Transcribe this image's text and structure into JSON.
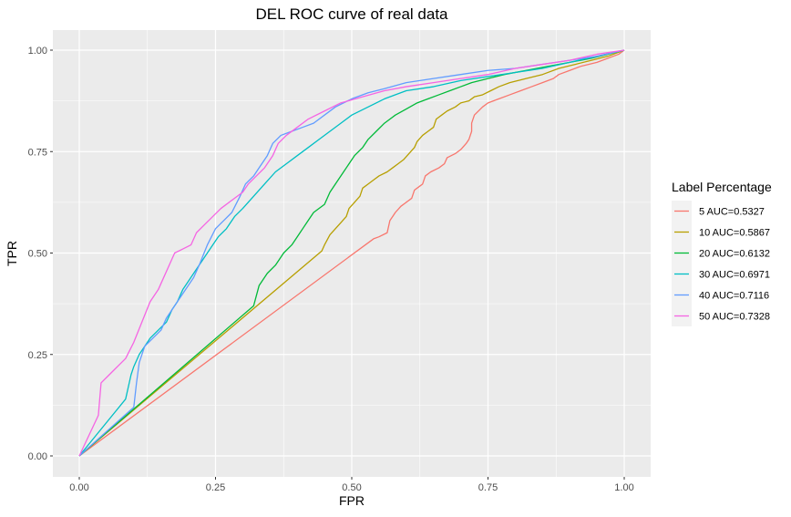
{
  "chart_data": {
    "type": "line",
    "title": "DEL ROC curve of real data",
    "xlabel": "FPR",
    "ylabel": "TPR",
    "xlim": [
      0,
      1
    ],
    "ylim": [
      0,
      1
    ],
    "x_ticks": [
      "0.00",
      "0.25",
      "0.50",
      "0.75",
      "1.00"
    ],
    "y_ticks": [
      "0.00",
      "0.25",
      "0.50",
      "0.75",
      "1.00"
    ],
    "grid": true,
    "legend_position": "right",
    "legend_title": "Label Percentage",
    "series": [
      {
        "name": "5 AUC=0.5327",
        "color": "#F8766D",
        "points": [
          [
            0,
            0
          ],
          [
            0.54,
            0.535
          ],
          [
            0.55,
            0.54
          ],
          [
            0.565,
            0.55
          ],
          [
            0.57,
            0.58
          ],
          [
            0.575,
            0.59
          ],
          [
            0.58,
            0.6
          ],
          [
            0.59,
            0.615
          ],
          [
            0.6,
            0.625
          ],
          [
            0.61,
            0.635
          ],
          [
            0.615,
            0.655
          ],
          [
            0.625,
            0.665
          ],
          [
            0.63,
            0.67
          ],
          [
            0.635,
            0.69
          ],
          [
            0.645,
            0.7
          ],
          [
            0.66,
            0.71
          ],
          [
            0.67,
            0.72
          ],
          [
            0.675,
            0.735
          ],
          [
            0.69,
            0.745
          ],
          [
            0.7,
            0.755
          ],
          [
            0.71,
            0.77
          ],
          [
            0.715,
            0.78
          ],
          [
            0.72,
            0.8
          ],
          [
            0.72,
            0.82
          ],
          [
            0.725,
            0.84
          ],
          [
            0.74,
            0.86
          ],
          [
            0.75,
            0.87
          ],
          [
            0.77,
            0.88
          ],
          [
            0.79,
            0.89
          ],
          [
            0.81,
            0.9
          ],
          [
            0.83,
            0.91
          ],
          [
            0.85,
            0.92
          ],
          [
            0.87,
            0.93
          ],
          [
            0.88,
            0.94
          ],
          [
            0.9,
            0.95
          ],
          [
            0.92,
            0.96
          ],
          [
            0.95,
            0.97
          ],
          [
            0.97,
            0.98
          ],
          [
            0.99,
            0.99
          ],
          [
            1,
            1
          ]
        ]
      },
      {
        "name": "10 AUC=0.5867",
        "color": "#B79F00",
        "points": [
          [
            0,
            0
          ],
          [
            0.445,
            0.505
          ],
          [
            0.45,
            0.52
          ],
          [
            0.46,
            0.545
          ],
          [
            0.47,
            0.56
          ],
          [
            0.48,
            0.575
          ],
          [
            0.49,
            0.59
          ],
          [
            0.495,
            0.61
          ],
          [
            0.505,
            0.625
          ],
          [
            0.515,
            0.64
          ],
          [
            0.52,
            0.66
          ],
          [
            0.53,
            0.67
          ],
          [
            0.54,
            0.68
          ],
          [
            0.55,
            0.69
          ],
          [
            0.565,
            0.7
          ],
          [
            0.575,
            0.71
          ],
          [
            0.585,
            0.72
          ],
          [
            0.595,
            0.73
          ],
          [
            0.605,
            0.745
          ],
          [
            0.615,
            0.76
          ],
          [
            0.62,
            0.775
          ],
          [
            0.63,
            0.79
          ],
          [
            0.64,
            0.8
          ],
          [
            0.65,
            0.81
          ],
          [
            0.655,
            0.83
          ],
          [
            0.665,
            0.84
          ],
          [
            0.675,
            0.85
          ],
          [
            0.69,
            0.86
          ],
          [
            0.7,
            0.87
          ],
          [
            0.715,
            0.875
          ],
          [
            0.725,
            0.885
          ],
          [
            0.74,
            0.89
          ],
          [
            0.755,
            0.9
          ],
          [
            0.77,
            0.91
          ],
          [
            0.79,
            0.92
          ],
          [
            0.82,
            0.93
          ],
          [
            0.85,
            0.94
          ],
          [
            0.88,
            0.955
          ],
          [
            0.91,
            0.965
          ],
          [
            0.94,
            0.975
          ],
          [
            0.97,
            0.985
          ],
          [
            1,
            1
          ]
        ]
      },
      {
        "name": "20 AUC=0.6132",
        "color": "#00BA38",
        "points": [
          [
            0,
            0
          ],
          [
            0.32,
            0.37
          ],
          [
            0.33,
            0.42
          ],
          [
            0.345,
            0.45
          ],
          [
            0.36,
            0.47
          ],
          [
            0.375,
            0.5
          ],
          [
            0.39,
            0.52
          ],
          [
            0.4,
            0.54
          ],
          [
            0.41,
            0.56
          ],
          [
            0.42,
            0.58
          ],
          [
            0.43,
            0.6
          ],
          [
            0.45,
            0.62
          ],
          [
            0.46,
            0.65
          ],
          [
            0.475,
            0.68
          ],
          [
            0.485,
            0.7
          ],
          [
            0.495,
            0.72
          ],
          [
            0.505,
            0.74
          ],
          [
            0.52,
            0.76
          ],
          [
            0.53,
            0.78
          ],
          [
            0.545,
            0.8
          ],
          [
            0.56,
            0.82
          ],
          [
            0.58,
            0.84
          ],
          [
            0.6,
            0.855
          ],
          [
            0.62,
            0.87
          ],
          [
            0.64,
            0.88
          ],
          [
            0.66,
            0.89
          ],
          [
            0.68,
            0.9
          ],
          [
            0.7,
            0.91
          ],
          [
            0.72,
            0.92
          ],
          [
            0.75,
            0.93
          ],
          [
            0.78,
            0.94
          ],
          [
            0.82,
            0.95
          ],
          [
            0.86,
            0.96
          ],
          [
            0.9,
            0.97
          ],
          [
            0.94,
            0.98
          ],
          [
            0.97,
            0.99
          ],
          [
            1,
            1
          ]
        ]
      },
      {
        "name": "30 AUC=0.6971",
        "color": "#00BFC4",
        "points": [
          [
            0,
            0
          ],
          [
            0.085,
            0.14
          ],
          [
            0.09,
            0.17
          ],
          [
            0.095,
            0.2
          ],
          [
            0.1,
            0.22
          ],
          [
            0.11,
            0.25
          ],
          [
            0.12,
            0.27
          ],
          [
            0.13,
            0.29
          ],
          [
            0.145,
            0.31
          ],
          [
            0.16,
            0.33
          ],
          [
            0.17,
            0.36
          ],
          [
            0.18,
            0.38
          ],
          [
            0.19,
            0.41
          ],
          [
            0.2,
            0.43
          ],
          [
            0.215,
            0.46
          ],
          [
            0.225,
            0.48
          ],
          [
            0.24,
            0.51
          ],
          [
            0.255,
            0.54
          ],
          [
            0.27,
            0.56
          ],
          [
            0.285,
            0.59
          ],
          [
            0.3,
            0.61
          ],
          [
            0.32,
            0.64
          ],
          [
            0.34,
            0.67
          ],
          [
            0.36,
            0.7
          ],
          [
            0.38,
            0.72
          ],
          [
            0.4,
            0.74
          ],
          [
            0.42,
            0.76
          ],
          [
            0.44,
            0.78
          ],
          [
            0.46,
            0.8
          ],
          [
            0.48,
            0.82
          ],
          [
            0.5,
            0.84
          ],
          [
            0.53,
            0.86
          ],
          [
            0.56,
            0.88
          ],
          [
            0.6,
            0.9
          ],
          [
            0.65,
            0.91
          ],
          [
            0.7,
            0.925
          ],
          [
            0.75,
            0.935
          ],
          [
            0.8,
            0.945
          ],
          [
            0.85,
            0.955
          ],
          [
            0.9,
            0.97
          ],
          [
            0.95,
            0.985
          ],
          [
            1,
            1
          ]
        ]
      },
      {
        "name": "40 AUC=0.7116",
        "color": "#619CFF",
        "points": [
          [
            0,
            0
          ],
          [
            0.1,
            0.12
          ],
          [
            0.105,
            0.18
          ],
          [
            0.11,
            0.23
          ],
          [
            0.12,
            0.27
          ],
          [
            0.135,
            0.29
          ],
          [
            0.15,
            0.31
          ],
          [
            0.16,
            0.34
          ],
          [
            0.175,
            0.37
          ],
          [
            0.19,
            0.4
          ],
          [
            0.2,
            0.42
          ],
          [
            0.21,
            0.44
          ],
          [
            0.22,
            0.47
          ],
          [
            0.235,
            0.52
          ],
          [
            0.25,
            0.56
          ],
          [
            0.265,
            0.58
          ],
          [
            0.28,
            0.6
          ],
          [
            0.295,
            0.64
          ],
          [
            0.305,
            0.67
          ],
          [
            0.32,
            0.69
          ],
          [
            0.33,
            0.71
          ],
          [
            0.345,
            0.74
          ],
          [
            0.355,
            0.77
          ],
          [
            0.37,
            0.79
          ],
          [
            0.39,
            0.8
          ],
          [
            0.41,
            0.81
          ],
          [
            0.43,
            0.82
          ],
          [
            0.45,
            0.84
          ],
          [
            0.47,
            0.86
          ],
          [
            0.5,
            0.88
          ],
          [
            0.53,
            0.895
          ],
          [
            0.56,
            0.905
          ],
          [
            0.6,
            0.92
          ],
          [
            0.65,
            0.93
          ],
          [
            0.7,
            0.94
          ],
          [
            0.75,
            0.95
          ],
          [
            0.8,
            0.955
          ],
          [
            0.85,
            0.965
          ],
          [
            0.9,
            0.975
          ],
          [
            0.95,
            0.985
          ],
          [
            1,
            1
          ]
        ]
      },
      {
        "name": "50 AUC=0.7328",
        "color": "#F564E3",
        "points": [
          [
            0,
            0
          ],
          [
            0.035,
            0.1
          ],
          [
            0.04,
            0.18
          ],
          [
            0.055,
            0.2
          ],
          [
            0.07,
            0.22
          ],
          [
            0.085,
            0.24
          ],
          [
            0.1,
            0.28
          ],
          [
            0.115,
            0.33
          ],
          [
            0.13,
            0.38
          ],
          [
            0.145,
            0.41
          ],
          [
            0.155,
            0.44
          ],
          [
            0.165,
            0.47
          ],
          [
            0.175,
            0.5
          ],
          [
            0.19,
            0.51
          ],
          [
            0.205,
            0.52
          ],
          [
            0.215,
            0.55
          ],
          [
            0.23,
            0.57
          ],
          [
            0.245,
            0.59
          ],
          [
            0.26,
            0.61
          ],
          [
            0.28,
            0.63
          ],
          [
            0.3,
            0.65
          ],
          [
            0.31,
            0.67
          ],
          [
            0.325,
            0.69
          ],
          [
            0.34,
            0.71
          ],
          [
            0.355,
            0.74
          ],
          [
            0.365,
            0.77
          ],
          [
            0.38,
            0.79
          ],
          [
            0.4,
            0.81
          ],
          [
            0.42,
            0.83
          ],
          [
            0.45,
            0.85
          ],
          [
            0.48,
            0.87
          ],
          [
            0.52,
            0.885
          ],
          [
            0.56,
            0.9
          ],
          [
            0.6,
            0.91
          ],
          [
            0.65,
            0.92
          ],
          [
            0.7,
            0.93
          ],
          [
            0.75,
            0.94
          ],
          [
            0.8,
            0.955
          ],
          [
            0.85,
            0.965
          ],
          [
            0.9,
            0.975
          ],
          [
            0.95,
            0.99
          ],
          [
            1,
            1
          ]
        ]
      }
    ]
  }
}
